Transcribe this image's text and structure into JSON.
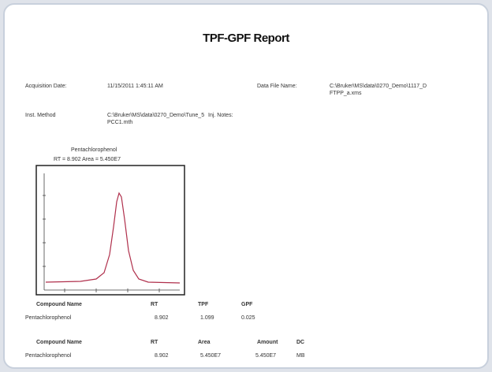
{
  "header": {
    "title": "TPF-GPF Report"
  },
  "info": {
    "acquisition_label": "Acquisition Date:",
    "acquisition_value": "11/15/2011 1:45:11 AM",
    "data_file_label": "Data File Name:",
    "data_file_lines": [
      "C:\\Bruker\\MS\\data\\0270_Demo\\1117_D",
      "FTPP_a.xms"
    ],
    "method_label": "Inst. Method",
    "method_lines": [
      "C:\\Bruker\\MS\\data\\0270_Demo\\Tune_5",
      "PCC1.mth"
    ],
    "notes_label": "Inj. Notes:"
  },
  "plot": {
    "compound": "Pentachlorophenol",
    "caption": "RT = 8.902  Area = 5.450E7"
  },
  "table1": {
    "headers": [
      "Compound Name",
      "RT",
      "TPF",
      "GPF"
    ],
    "rows": [
      [
        "Pentachlorophenol",
        "8.902",
        "1.099",
        "0.025"
      ]
    ]
  },
  "table2": {
    "headers": [
      "Compound Name",
      "RT",
      "Area",
      "Amount",
      "DC"
    ],
    "rows": [
      [
        "Pentachlorophenol",
        "8.902",
        "5.450E7",
        "5.450E7",
        "MB"
      ]
    ]
  }
}
